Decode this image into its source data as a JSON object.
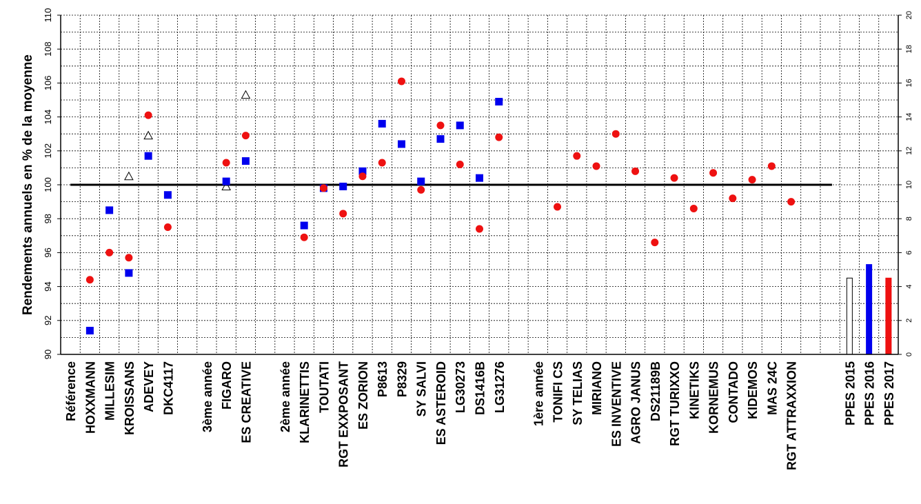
{
  "chart_data": {
    "type": "scatter",
    "ylabel": "Rendements annuels en % de la moyenne",
    "ylim": [
      90,
      110
    ],
    "y_ticks": [
      "90",
      "92",
      "94",
      "96",
      "98",
      "100",
      "102",
      "104",
      "106",
      "108",
      "110"
    ],
    "y2lim": [
      0,
      20
    ],
    "y2_ticks": [
      "0",
      "2",
      "4",
      "6",
      "8",
      "10",
      "12",
      "14",
      "16",
      "18",
      "20"
    ],
    "grid": true,
    "reference_line": 100,
    "categories": [
      "Référence",
      "HOXXMANN",
      "MILLESIM",
      "KROISSANS",
      "ADEVEY",
      "DKC4117",
      "",
      "3ème année",
      "FIGARO",
      "ES CREATIVE",
      "",
      "2ème année",
      "KLARINETTIS",
      "TOUTATI",
      "RGT EXXPOSANT",
      "ES ZORION",
      "P8613",
      "P8329",
      "SY SALVI",
      "ES ASTEROID",
      "LG30273",
      "DS1416B",
      "LG31276",
      "",
      "1ère année",
      "TONIFI CS",
      "SY TELIAS",
      "MIRIANO",
      "ES INVENTIVE",
      "AGRO JANUS",
      "DS21189B",
      "RGT TURIXXO",
      "KINETIKS",
      "KORNEMUS",
      "CONTADO",
      "KIDEMOS",
      "MAS 24C",
      "RGT ATTRAXXION",
      "",
      "",
      "PPES 2015",
      "PPES 2016",
      "PPES 2017"
    ],
    "series": [
      {
        "marker": "triangle-open",
        "color": "#000000",
        "values": [
          null,
          null,
          null,
          100.5,
          102.9,
          null,
          null,
          null,
          99.9,
          105.3,
          null,
          null,
          null,
          null,
          null,
          null,
          null,
          null,
          null,
          null,
          null,
          null,
          null,
          null,
          null,
          null,
          null,
          null,
          null,
          null,
          null,
          null,
          null,
          null,
          null,
          null,
          null,
          null,
          null,
          null,
          null,
          null,
          null
        ]
      },
      {
        "marker": "square",
        "color": "#0000ee",
        "values": [
          null,
          91.4,
          98.5,
          94.8,
          101.7,
          99.4,
          null,
          null,
          100.2,
          101.4,
          null,
          null,
          97.6,
          99.8,
          99.9,
          100.8,
          103.6,
          102.4,
          100.2,
          102.7,
          103.5,
          100.4,
          104.9,
          null,
          null,
          null,
          null,
          null,
          null,
          null,
          null,
          null,
          null,
          null,
          null,
          null,
          null,
          null,
          null,
          null,
          null,
          null,
          null
        ]
      },
      {
        "marker": "circle",
        "color": "#ee1111",
        "values": [
          null,
          94.4,
          96.0,
          95.7,
          104.1,
          97.5,
          null,
          null,
          101.3,
          102.9,
          null,
          null,
          96.9,
          99.8,
          98.3,
          100.5,
          101.3,
          106.1,
          99.7,
          103.5,
          101.2,
          97.4,
          102.8,
          null,
          null,
          98.7,
          101.7,
          101.1,
          103.0,
          100.8,
          96.6,
          100.4,
          98.6,
          100.7,
          99.2,
          100.3,
          101.1,
          99.0,
          null,
          null,
          null,
          null,
          null
        ]
      }
    ],
    "bars_right_axis": [
      {
        "category": "PPES 2015",
        "value": 4.5,
        "fill": "#ffffff",
        "stroke": "#000000"
      },
      {
        "category": "PPES 2016",
        "value": 5.3,
        "fill": "#0000ee",
        "stroke": "#0000ee"
      },
      {
        "category": "PPES 2017",
        "value": 4.5,
        "fill": "#ee1111",
        "stroke": "#ee1111"
      }
    ]
  }
}
